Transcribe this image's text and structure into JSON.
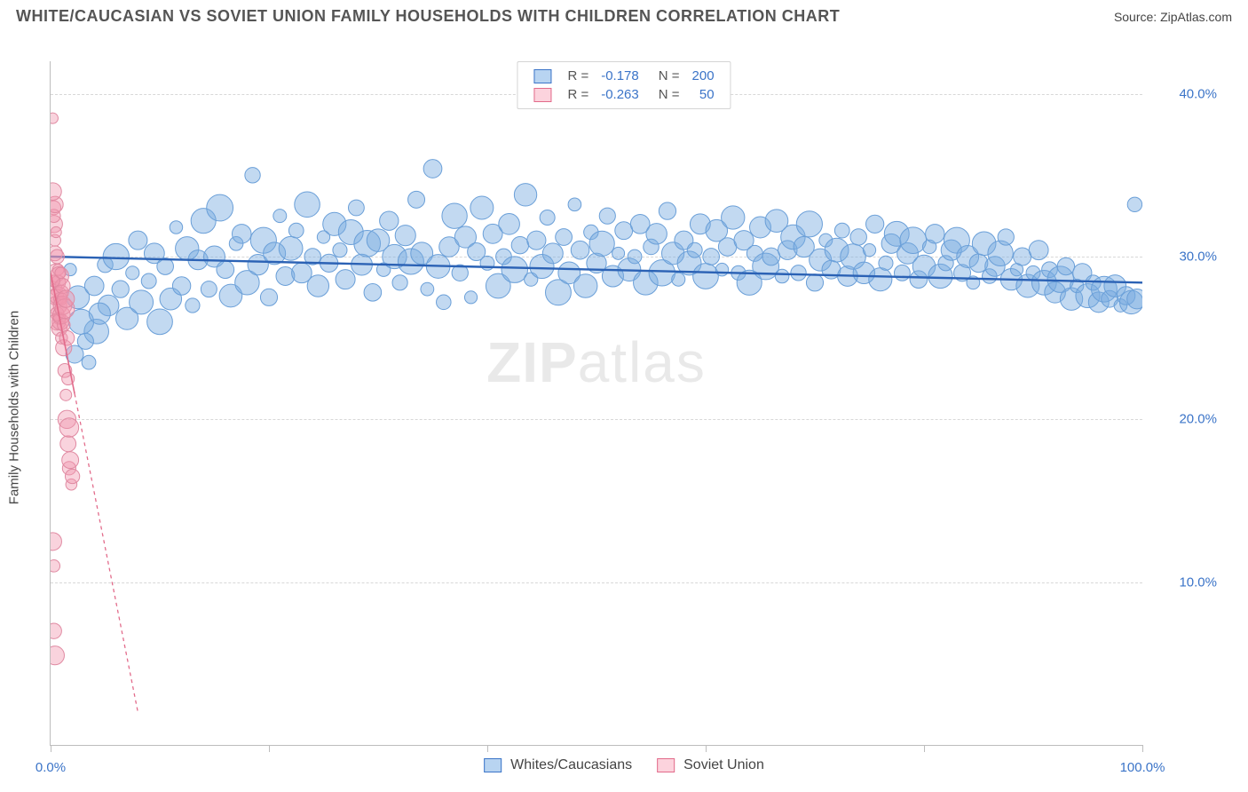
{
  "header": {
    "title": "WHITE/CAUCASIAN VS SOVIET UNION FAMILY HOUSEHOLDS WITH CHILDREN CORRELATION CHART",
    "source_prefix": "Source: ",
    "source_name": "ZipAtlas.com"
  },
  "chart": {
    "type": "scatter",
    "ylabel": "Family Households with Children",
    "background_color": "#ffffff",
    "grid_color": "#d8d8d8",
    "axis_color": "#bdbdbd",
    "xlim": [
      0,
      100
    ],
    "ylim": [
      0,
      42
    ],
    "yticks": [
      {
        "v": 10,
        "label": "10.0%"
      },
      {
        "v": 20,
        "label": "20.0%"
      },
      {
        "v": 30,
        "label": "30.0%"
      },
      {
        "v": 40,
        "label": "40.0%"
      }
    ],
    "xticks_major": [
      0,
      20,
      40,
      60,
      80,
      100
    ],
    "xtick_labels": [
      {
        "v": 0,
        "label": "0.0%"
      },
      {
        "v": 100,
        "label": "100.0%"
      }
    ],
    "watermark": {
      "part1": "ZIP",
      "part2": "atlas"
    },
    "legend_top": [
      {
        "swatch_fill": "#b8d4f1",
        "swatch_stroke": "#3b74c8",
        "r_label": "R =",
        "r_value": "-0.178",
        "n_label": "N =",
        "n_value": "200",
        "value_color": "#3b74c8"
      },
      {
        "swatch_fill": "#fcd3dd",
        "swatch_stroke": "#e26a8a",
        "r_label": "R =",
        "r_value": "-0.263",
        "n_label": "N =",
        "n_value": "50",
        "value_color": "#3b74c8"
      }
    ],
    "legend_bottom": [
      {
        "swatch_fill": "#b8d4f1",
        "swatch_stroke": "#3b74c8",
        "label": "Whites/Caucasians"
      },
      {
        "swatch_fill": "#fcd3dd",
        "swatch_stroke": "#e26a8a",
        "label": "Soviet Union"
      }
    ],
    "series": [
      {
        "name": "whites_caucasians",
        "color_fill": "rgba(120,170,225,0.45)",
        "color_stroke": "#6a9fd8",
        "marker_radius_min": 7,
        "marker_radius_max": 15,
        "trend": {
          "x1": 0,
          "y1": 30.0,
          "x2": 100,
          "y2": 28.4,
          "stroke": "#2b62b5",
          "width": 2.4,
          "dash": "none"
        },
        "points": [
          [
            1.8,
            29.2
          ],
          [
            2.2,
            24.0
          ],
          [
            2.5,
            27.5
          ],
          [
            3.5,
            23.5
          ],
          [
            4.0,
            28.2
          ],
          [
            4.2,
            25.4
          ],
          [
            5.0,
            29.5
          ],
          [
            5.3,
            27.0
          ],
          [
            6.0,
            30.0
          ],
          [
            6.4,
            28.0
          ],
          [
            7.0,
            26.2
          ],
          [
            7.5,
            29.0
          ],
          [
            8.0,
            31.0
          ],
          [
            8.3,
            27.2
          ],
          [
            9.0,
            28.5
          ],
          [
            9.5,
            30.2
          ],
          [
            10.0,
            26.0
          ],
          [
            10.5,
            29.4
          ],
          [
            11.0,
            27.4
          ],
          [
            11.5,
            31.8
          ],
          [
            12.0,
            28.2
          ],
          [
            12.5,
            30.5
          ],
          [
            13.0,
            27.0
          ],
          [
            13.5,
            29.8
          ],
          [
            14.0,
            32.2
          ],
          [
            14.5,
            28.0
          ],
          [
            15.0,
            30.0
          ],
          [
            15.5,
            33.0
          ],
          [
            16.0,
            29.2
          ],
          [
            16.5,
            27.6
          ],
          [
            17.0,
            30.8
          ],
          [
            17.5,
            31.4
          ],
          [
            18.0,
            28.4
          ],
          [
            18.5,
            35.0
          ],
          [
            19.0,
            29.5
          ],
          [
            19.5,
            31.0
          ],
          [
            20.0,
            27.5
          ],
          [
            20.5,
            30.2
          ],
          [
            21.0,
            32.5
          ],
          [
            21.5,
            28.8
          ],
          [
            22.0,
            30.5
          ],
          [
            22.5,
            31.6
          ],
          [
            23.0,
            29.0
          ],
          [
            23.5,
            33.2
          ],
          [
            24.0,
            30.0
          ],
          [
            24.5,
            28.2
          ],
          [
            25.0,
            31.2
          ],
          [
            25.5,
            29.6
          ],
          [
            26.0,
            32.0
          ],
          [
            26.5,
            30.4
          ],
          [
            27.0,
            28.6
          ],
          [
            27.5,
            31.5
          ],
          [
            28.0,
            33.0
          ],
          [
            28.5,
            29.5
          ],
          [
            29.0,
            30.8
          ],
          [
            29.5,
            27.8
          ],
          [
            30.0,
            31.0
          ],
          [
            30.5,
            29.2
          ],
          [
            31.0,
            32.2
          ],
          [
            31.5,
            30.0
          ],
          [
            32.0,
            28.4
          ],
          [
            32.5,
            31.3
          ],
          [
            33.0,
            29.7
          ],
          [
            33.5,
            33.5
          ],
          [
            34.0,
            30.2
          ],
          [
            34.5,
            28.0
          ],
          [
            35.0,
            35.4
          ],
          [
            35.5,
            29.4
          ],
          [
            36.0,
            27.2
          ],
          [
            36.5,
            30.6
          ],
          [
            37.0,
            32.5
          ],
          [
            37.5,
            29.0
          ],
          [
            38.0,
            31.2
          ],
          [
            38.5,
            27.5
          ],
          [
            39.0,
            30.3
          ],
          [
            39.5,
            33.0
          ],
          [
            40.0,
            29.6
          ],
          [
            40.5,
            31.4
          ],
          [
            41.0,
            28.2
          ],
          [
            41.5,
            30.0
          ],
          [
            42.0,
            32.0
          ],
          [
            42.5,
            29.2
          ],
          [
            43.0,
            30.7
          ],
          [
            43.5,
            33.8
          ],
          [
            44.0,
            28.6
          ],
          [
            44.5,
            31.0
          ],
          [
            45.0,
            29.4
          ],
          [
            45.5,
            32.4
          ],
          [
            46.0,
            30.2
          ],
          [
            46.5,
            27.8
          ],
          [
            47.0,
            31.2
          ],
          [
            47.5,
            29.0
          ],
          [
            48.0,
            33.2
          ],
          [
            48.5,
            30.4
          ],
          [
            49.0,
            28.2
          ],
          [
            49.5,
            31.5
          ],
          [
            50.0,
            29.6
          ],
          [
            50.5,
            30.8
          ],
          [
            51.0,
            32.5
          ],
          [
            51.5,
            28.8
          ],
          [
            52.0,
            30.2
          ],
          [
            52.5,
            31.6
          ],
          [
            53.0,
            29.2
          ],
          [
            53.5,
            30.0
          ],
          [
            54.0,
            32.0
          ],
          [
            54.5,
            28.4
          ],
          [
            55.0,
            30.6
          ],
          [
            55.5,
            31.4
          ],
          [
            56.0,
            29.0
          ],
          [
            56.5,
            32.8
          ],
          [
            57.0,
            30.2
          ],
          [
            57.5,
            28.6
          ],
          [
            58.0,
            31.0
          ],
          [
            58.5,
            29.6
          ],
          [
            59.0,
            30.4
          ],
          [
            59.5,
            32.0
          ],
          [
            60.0,
            28.8
          ],
          [
            60.5,
            30.0
          ],
          [
            61.0,
            31.6
          ],
          [
            61.5,
            29.2
          ],
          [
            62.0,
            30.6
          ],
          [
            62.5,
            32.4
          ],
          [
            63.0,
            29.0
          ],
          [
            63.5,
            31.0
          ],
          [
            64.0,
            28.4
          ],
          [
            64.5,
            30.2
          ],
          [
            65.0,
            31.8
          ],
          [
            65.5,
            29.4
          ],
          [
            66.0,
            30.0
          ],
          [
            66.5,
            32.2
          ],
          [
            67.0,
            28.8
          ],
          [
            67.5,
            30.4
          ],
          [
            68.0,
            31.2
          ],
          [
            68.5,
            29.0
          ],
          [
            69.0,
            30.6
          ],
          [
            69.5,
            32.0
          ],
          [
            70.0,
            28.4
          ],
          [
            70.5,
            29.8
          ],
          [
            71.0,
            31.0
          ],
          [
            71.5,
            29.2
          ],
          [
            72.0,
            30.4
          ],
          [
            72.5,
            31.6
          ],
          [
            73.0,
            28.8
          ],
          [
            73.5,
            30.0
          ],
          [
            74.0,
            31.2
          ],
          [
            74.5,
            29.0
          ],
          [
            75.0,
            30.4
          ],
          [
            75.5,
            32.0
          ],
          [
            76.0,
            28.6
          ],
          [
            76.5,
            29.6
          ],
          [
            77.0,
            30.8
          ],
          [
            77.5,
            31.4
          ],
          [
            78.0,
            29.0
          ],
          [
            78.5,
            30.2
          ],
          [
            79.0,
            31.0
          ],
          [
            79.5,
            28.6
          ],
          [
            80.0,
            29.4
          ],
          [
            80.5,
            30.6
          ],
          [
            81.0,
            31.4
          ],
          [
            81.5,
            28.8
          ],
          [
            82.0,
            29.6
          ],
          [
            82.5,
            30.4
          ],
          [
            83.0,
            31.0
          ],
          [
            83.5,
            29.0
          ],
          [
            84.0,
            30.0
          ],
          [
            84.5,
            28.4
          ],
          [
            85.0,
            29.6
          ],
          [
            85.5,
            30.8
          ],
          [
            86.0,
            28.8
          ],
          [
            86.5,
            29.4
          ],
          [
            87.0,
            30.2
          ],
          [
            87.5,
            31.2
          ],
          [
            88.0,
            28.6
          ],
          [
            88.5,
            29.2
          ],
          [
            89.0,
            30.0
          ],
          [
            89.5,
            28.2
          ],
          [
            90.0,
            29.0
          ],
          [
            90.5,
            30.4
          ],
          [
            91.0,
            28.4
          ],
          [
            91.5,
            29.2
          ],
          [
            92.0,
            27.8
          ],
          [
            92.5,
            28.6
          ],
          [
            93.0,
            29.4
          ],
          [
            93.5,
            27.4
          ],
          [
            94.0,
            28.2
          ],
          [
            94.5,
            29.0
          ],
          [
            95.0,
            27.6
          ],
          [
            95.5,
            28.4
          ],
          [
            96.0,
            27.2
          ],
          [
            96.5,
            28.0
          ],
          [
            97.0,
            27.4
          ],
          [
            97.5,
            28.2
          ],
          [
            98.0,
            27.0
          ],
          [
            98.5,
            27.6
          ],
          [
            99.0,
            27.2
          ],
          [
            99.3,
            33.2
          ],
          [
            99.5,
            27.4
          ],
          [
            2.8,
            26.0
          ],
          [
            3.2,
            24.8
          ],
          [
            4.5,
            26.5
          ]
        ]
      },
      {
        "name": "soviet_union",
        "color_fill": "rgba(240,150,175,0.42)",
        "color_stroke": "#e08aa2",
        "marker_radius_min": 6,
        "marker_radius_max": 11,
        "trend": {
          "x1": 0,
          "y1": 29.0,
          "x2": 8,
          "y2": 2.0,
          "stroke": "#e26a8a",
          "width": 1.6,
          "dash": "4,4",
          "solid_until_x": 2.2
        },
        "points": [
          [
            0.2,
            38.5
          ],
          [
            0.3,
            33.0
          ],
          [
            0.3,
            32.0
          ],
          [
            0.4,
            31.0
          ],
          [
            0.4,
            30.2
          ],
          [
            0.5,
            29.0
          ],
          [
            0.5,
            28.0
          ],
          [
            0.5,
            27.5
          ],
          [
            0.6,
            27.0
          ],
          [
            0.6,
            26.5
          ],
          [
            0.6,
            26.0
          ],
          [
            0.7,
            29.2
          ],
          [
            0.7,
            28.4
          ],
          [
            0.7,
            27.6
          ],
          [
            0.8,
            26.2
          ],
          [
            0.8,
            25.6
          ],
          [
            0.8,
            28.8
          ],
          [
            0.9,
            27.4
          ],
          [
            0.9,
            26.0
          ],
          [
            0.9,
            29.0
          ],
          [
            1.0,
            27.8
          ],
          [
            1.0,
            26.4
          ],
          [
            1.0,
            25.0
          ],
          [
            1.1,
            28.2
          ],
          [
            1.1,
            27.0
          ],
          [
            1.2,
            25.8
          ],
          [
            1.2,
            24.4
          ],
          [
            1.3,
            26.8
          ],
          [
            1.3,
            23.0
          ],
          [
            1.4,
            27.4
          ],
          [
            1.4,
            21.5
          ],
          [
            1.5,
            25.0
          ],
          [
            1.5,
            20.0
          ],
          [
            1.6,
            22.5
          ],
          [
            1.6,
            18.5
          ],
          [
            1.7,
            19.5
          ],
          [
            1.7,
            17.0
          ],
          [
            1.8,
            17.5
          ],
          [
            1.9,
            16.0
          ],
          [
            2.0,
            16.5
          ],
          [
            0.2,
            12.5
          ],
          [
            0.3,
            11.0
          ],
          [
            0.3,
            7.0
          ],
          [
            0.4,
            5.5
          ],
          [
            0.3,
            32.5
          ],
          [
            0.4,
            33.2
          ],
          [
            0.5,
            31.5
          ],
          [
            0.6,
            30.0
          ],
          [
            0.2,
            34.0
          ],
          [
            0.3,
            28.5
          ]
        ]
      }
    ]
  }
}
